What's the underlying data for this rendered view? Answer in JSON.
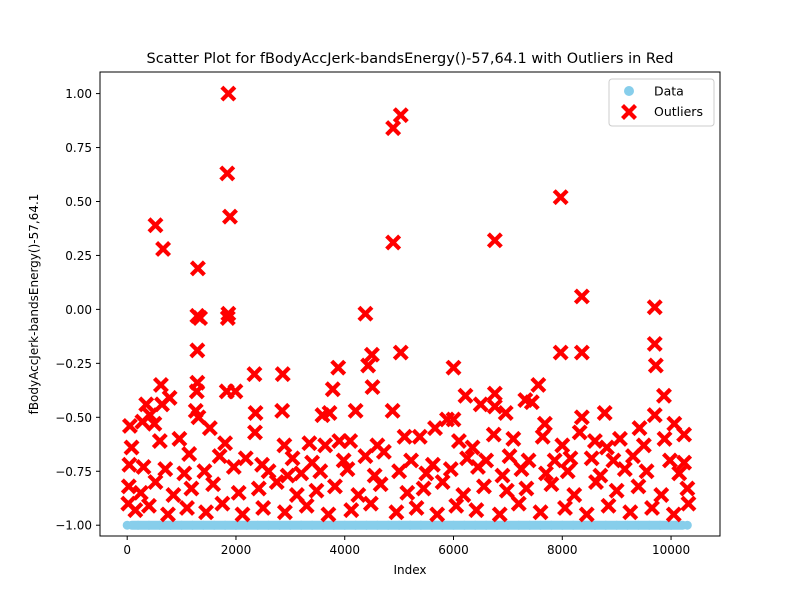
{
  "chart_data": {
    "type": "scatter",
    "title": "Scatter Plot for fBodyAccJerk-bandsEnergy()-57,64.1 with Outliers in Red",
    "xlabel": "Index",
    "ylabel": "fBodyAccJerk-bandsEnergy()-57,64.1",
    "xlim": [
      -500,
      10900
    ],
    "ylim": [
      -1.05,
      1.1
    ],
    "x_ticks": [
      0,
      2000,
      4000,
      6000,
      8000,
      10000
    ],
    "x_tick_labels": [
      "0",
      "2000",
      "4000",
      "6000",
      "8000",
      "10000"
    ],
    "y_ticks": [
      -1.0,
      -0.75,
      -0.5,
      -0.25,
      0.0,
      0.25,
      0.5,
      0.75,
      1.0
    ],
    "y_tick_labels": [
      "−1.00",
      "−0.75",
      "−0.50",
      "−0.25",
      "0.00",
      "0.25",
      "0.50",
      "0.75",
      "1.00"
    ],
    "grid": false,
    "legend_position": "top-right",
    "colors": {
      "data": "#87ceeb",
      "outliers": "#ff0000"
    },
    "series": [
      {
        "name": "Data",
        "marker": "circle",
        "color": "#87ceeb",
        "note_range": [
          0,
          10299
        ],
        "points": [
          [
            0,
            -1.0
          ],
          [
            200,
            -1.0
          ],
          [
            400,
            -1.0
          ],
          [
            600,
            -1.0
          ],
          [
            800,
            -1.0
          ],
          [
            1000,
            -1.0
          ],
          [
            1200,
            -1.0
          ],
          [
            1400,
            -1.0
          ],
          [
            1600,
            -1.0
          ],
          [
            1800,
            -1.0
          ],
          [
            2000,
            -1.0
          ],
          [
            2200,
            -1.0
          ],
          [
            2400,
            -1.0
          ],
          [
            2600,
            -1.0
          ],
          [
            2800,
            -1.0
          ],
          [
            3000,
            -1.0
          ],
          [
            3200,
            -1.0
          ],
          [
            3400,
            -1.0
          ],
          [
            3600,
            -1.0
          ],
          [
            3800,
            -1.0
          ],
          [
            4000,
            -1.0
          ],
          [
            4200,
            -1.0
          ],
          [
            4400,
            -1.0
          ],
          [
            4600,
            -1.0
          ],
          [
            4800,
            -1.0
          ],
          [
            5000,
            -1.0
          ],
          [
            5200,
            -1.0
          ],
          [
            5400,
            -1.0
          ],
          [
            5600,
            -1.0
          ],
          [
            5800,
            -1.0
          ],
          [
            6000,
            -1.0
          ],
          [
            6200,
            -1.0
          ],
          [
            6400,
            -1.0
          ],
          [
            6600,
            -1.0
          ],
          [
            6800,
            -1.0
          ],
          [
            7000,
            -1.0
          ],
          [
            7200,
            -1.0
          ],
          [
            7400,
            -1.0
          ],
          [
            7600,
            -1.0
          ],
          [
            7800,
            -1.0
          ],
          [
            8000,
            -1.0
          ],
          [
            8200,
            -1.0
          ],
          [
            8400,
            -1.0
          ],
          [
            8600,
            -1.0
          ],
          [
            8800,
            -1.0
          ],
          [
            9000,
            -1.0
          ],
          [
            9200,
            -1.0
          ],
          [
            9400,
            -1.0
          ],
          [
            9600,
            -1.0
          ],
          [
            9800,
            -1.0
          ],
          [
            10000,
            -1.0
          ],
          [
            10299,
            -1.0
          ]
        ]
      },
      {
        "name": "Outliers",
        "marker": "x",
        "color": "#ff0000",
        "points": [
          [
            1860,
            1.0
          ],
          [
            4890,
            0.84
          ],
          [
            5030,
            0.9
          ],
          [
            1840,
            0.63
          ],
          [
            1890,
            0.43
          ],
          [
            7970,
            0.52
          ],
          [
            520,
            0.39
          ],
          [
            4890,
            0.31
          ],
          [
            6760,
            0.32
          ],
          [
            660,
            0.28
          ],
          [
            1300,
            0.19
          ],
          [
            8360,
            0.06
          ],
          [
            9700,
            0.01
          ],
          [
            1290,
            -0.03
          ],
          [
            1340,
            -0.04
          ],
          [
            1860,
            -0.02
          ],
          [
            1850,
            -0.04
          ],
          [
            4380,
            -0.02
          ],
          [
            1290,
            -0.19
          ],
          [
            5030,
            -0.2
          ],
          [
            7970,
            -0.2
          ],
          [
            8360,
            -0.2
          ],
          [
            9700,
            -0.16
          ],
          [
            9720,
            -0.26
          ],
          [
            2340,
            -0.3
          ],
          [
            2860,
            -0.3
          ],
          [
            3880,
            -0.27
          ],
          [
            4500,
            -0.21
          ],
          [
            4430,
            -0.26
          ],
          [
            6000,
            -0.27
          ],
          [
            620,
            -0.35
          ],
          [
            1290,
            -0.34
          ],
          [
            1280,
            -0.38
          ],
          [
            1830,
            -0.38
          ],
          [
            1990,
            -0.38
          ],
          [
            3780,
            -0.37
          ],
          [
            4510,
            -0.36
          ],
          [
            6760,
            -0.39
          ],
          [
            7560,
            -0.35
          ],
          [
            9870,
            -0.4
          ],
          [
            350,
            -0.44
          ],
          [
            640,
            -0.44
          ],
          [
            780,
            -0.41
          ],
          [
            1260,
            -0.47
          ],
          [
            1310,
            -0.5
          ],
          [
            2360,
            -0.48
          ],
          [
            2850,
            -0.47
          ],
          [
            3590,
            -0.49
          ],
          [
            3720,
            -0.48
          ],
          [
            4200,
            -0.47
          ],
          [
            4880,
            -0.47
          ],
          [
            5880,
            -0.51
          ],
          [
            6000,
            -0.51
          ],
          [
            6220,
            -0.4
          ],
          [
            6500,
            -0.44
          ],
          [
            6760,
            -0.45
          ],
          [
            6960,
            -0.48
          ],
          [
            7320,
            -0.42
          ],
          [
            7440,
            -0.43
          ],
          [
            7680,
            -0.53
          ],
          [
            8360,
            -0.5
          ],
          [
            8780,
            -0.48
          ],
          [
            9420,
            -0.55
          ],
          [
            9700,
            -0.49
          ],
          [
            10060,
            -0.53
          ],
          [
            50,
            -0.54
          ],
          [
            280,
            -0.52
          ],
          [
            420,
            -0.49
          ],
          [
            500,
            -0.53
          ],
          [
            960,
            -0.6
          ],
          [
            1520,
            -0.55
          ],
          [
            1800,
            -0.62
          ],
          [
            2350,
            -0.57
          ],
          [
            2890,
            -0.63
          ],
          [
            3350,
            -0.62
          ],
          [
            3640,
            -0.63
          ],
          [
            3900,
            -0.61
          ],
          [
            4100,
            -0.61
          ],
          [
            4600,
            -0.63
          ],
          [
            5100,
            -0.59
          ],
          [
            5380,
            -0.59
          ],
          [
            5660,
            -0.55
          ],
          [
            6100,
            -0.61
          ],
          [
            6350,
            -0.64
          ],
          [
            6740,
            -0.58
          ],
          [
            7100,
            -0.6
          ],
          [
            7640,
            -0.59
          ],
          [
            8000,
            -0.63
          ],
          [
            8320,
            -0.57
          ],
          [
            8600,
            -0.61
          ],
          [
            8820,
            -0.64
          ],
          [
            9060,
            -0.6
          ],
          [
            9500,
            -0.63
          ],
          [
            9880,
            -0.6
          ],
          [
            10240,
            -0.58
          ],
          [
            80,
            -0.64
          ],
          [
            600,
            -0.61
          ],
          [
            1140,
            -0.67
          ],
          [
            1700,
            -0.68
          ],
          [
            2180,
            -0.69
          ],
          [
            2480,
            -0.72
          ],
          [
            3040,
            -0.69
          ],
          [
            3400,
            -0.71
          ],
          [
            3980,
            -0.7
          ],
          [
            4380,
            -0.68
          ],
          [
            4720,
            -0.66
          ],
          [
            5220,
            -0.7
          ],
          [
            5620,
            -0.72
          ],
          [
            6250,
            -0.69
          ],
          [
            6600,
            -0.7
          ],
          [
            7030,
            -0.68
          ],
          [
            7380,
            -0.7
          ],
          [
            7860,
            -0.7
          ],
          [
            8150,
            -0.69
          ],
          [
            8540,
            -0.69
          ],
          [
            8940,
            -0.7
          ],
          [
            9300,
            -0.68
          ],
          [
            9980,
            -0.7
          ],
          [
            10240,
            -0.71
          ],
          [
            40,
            -0.72
          ],
          [
            300,
            -0.73
          ],
          [
            700,
            -0.74
          ],
          [
            1050,
            -0.76
          ],
          [
            1420,
            -0.75
          ],
          [
            1960,
            -0.73
          ],
          [
            2600,
            -0.75
          ],
          [
            2950,
            -0.77
          ],
          [
            3200,
            -0.76
          ],
          [
            3550,
            -0.75
          ],
          [
            4050,
            -0.74
          ],
          [
            4550,
            -0.77
          ],
          [
            5000,
            -0.75
          ],
          [
            5500,
            -0.76
          ],
          [
            5950,
            -0.74
          ],
          [
            6450,
            -0.73
          ],
          [
            6900,
            -0.77
          ],
          [
            7250,
            -0.74
          ],
          [
            7700,
            -0.76
          ],
          [
            8100,
            -0.75
          ],
          [
            8700,
            -0.77
          ],
          [
            9150,
            -0.74
          ],
          [
            9550,
            -0.75
          ],
          [
            10150,
            -0.76
          ],
          [
            30,
            -0.82
          ],
          [
            250,
            -0.85
          ],
          [
            520,
            -0.8
          ],
          [
            850,
            -0.86
          ],
          [
            1180,
            -0.83
          ],
          [
            1580,
            -0.81
          ],
          [
            2050,
            -0.85
          ],
          [
            2420,
            -0.83
          ],
          [
            2750,
            -0.8
          ],
          [
            3120,
            -0.86
          ],
          [
            3480,
            -0.84
          ],
          [
            3820,
            -0.82
          ],
          [
            4250,
            -0.86
          ],
          [
            4660,
            -0.81
          ],
          [
            5150,
            -0.85
          ],
          [
            5450,
            -0.83
          ],
          [
            5800,
            -0.8
          ],
          [
            6180,
            -0.86
          ],
          [
            6560,
            -0.82
          ],
          [
            6980,
            -0.84
          ],
          [
            7340,
            -0.83
          ],
          [
            7800,
            -0.81
          ],
          [
            8220,
            -0.86
          ],
          [
            8620,
            -0.8
          ],
          [
            9000,
            -0.84
          ],
          [
            9400,
            -0.82
          ],
          [
            9820,
            -0.86
          ],
          [
            10300,
            -0.83
          ],
          [
            20,
            -0.9
          ],
          [
            150,
            -0.93
          ],
          [
            400,
            -0.91
          ],
          [
            750,
            -0.95
          ],
          [
            1100,
            -0.92
          ],
          [
            1450,
            -0.94
          ],
          [
            1750,
            -0.9
          ],
          [
            2120,
            -0.95
          ],
          [
            2500,
            -0.92
          ],
          [
            2900,
            -0.94
          ],
          [
            3300,
            -0.91
          ],
          [
            3700,
            -0.95
          ],
          [
            4120,
            -0.93
          ],
          [
            4480,
            -0.9
          ],
          [
            4950,
            -0.94
          ],
          [
            5320,
            -0.92
          ],
          [
            5700,
            -0.95
          ],
          [
            6050,
            -0.91
          ],
          [
            6420,
            -0.93
          ],
          [
            6850,
            -0.95
          ],
          [
            7200,
            -0.9
          ],
          [
            7600,
            -0.94
          ],
          [
            8050,
            -0.92
          ],
          [
            8450,
            -0.95
          ],
          [
            8850,
            -0.91
          ],
          [
            9250,
            -0.94
          ],
          [
            9650,
            -0.92
          ],
          [
            10050,
            -0.95
          ],
          [
            10320,
            -0.9
          ]
        ]
      }
    ]
  }
}
